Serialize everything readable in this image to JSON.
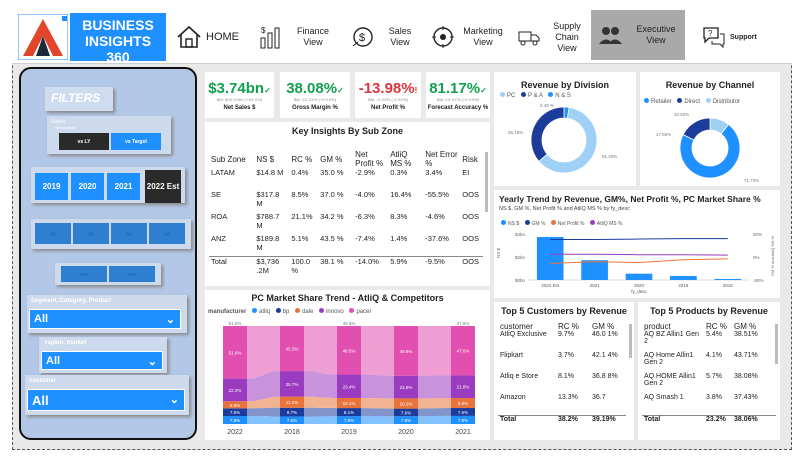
{
  "header": {
    "brand": "BUSINESS INSIGHTS 360",
    "nav": [
      {
        "label": "HOME",
        "icon": "home-icon"
      },
      {
        "label": "Finance View",
        "icon": "finance-icon"
      },
      {
        "label": "Sales View",
        "icon": "sales-icon"
      },
      {
        "label": "Marketing View",
        "icon": "marketing-icon"
      },
      {
        "label": "Supply Chain View",
        "icon": "supply-chain-icon"
      },
      {
        "label": "Executive View",
        "icon": "executive-icon"
      },
      {
        "label": "Support",
        "icon": "support-icon"
      }
    ],
    "active_nav": "Executive View"
  },
  "filters": {
    "title": "FILTERS",
    "select_label": "Select",
    "benchmark_label": "Benchmark",
    "vs_ly": "vs LY",
    "vs_target": "vs Target",
    "years": [
      "2019",
      "2020",
      "2021",
      "2022 Est"
    ],
    "selected_year": "2022 Est",
    "quarters": [
      "Q1",
      "Q2",
      "Q3",
      "Q4"
    ],
    "months": [
      "YTD",
      "YTG"
    ],
    "segment_label": "Segment, Category, Product",
    "segment_value": "All",
    "region_label": "region, market",
    "region_value": "All",
    "customer_label": "customer",
    "customer_value": "All"
  },
  "kpis": [
    {
      "value": "$3.74bn",
      "sub": "BM: $XX.XXbn (+XX.X%)",
      "label": "Net Sales $",
      "color": "green",
      "mark": "✓"
    },
    {
      "value": "38.08%",
      "sub": "BM: XX.XX% (+X.XX%)",
      "label": "Gross Margin %",
      "color": "green",
      "mark": "✓"
    },
    {
      "value": "-13.98%",
      "sub": "BM: -X.XX% (-X.XX%)",
      "label": "Net Profit %",
      "color": "red",
      "mark": "!"
    },
    {
      "value": "81.17%",
      "sub": "BM: XX.XX% (+X.XX%)",
      "label": "Forecast Accuracy %",
      "color": "green",
      "mark": "✓"
    }
  ],
  "insights": {
    "title": "Key Insights By Sub Zone",
    "columns": [
      "Sub Zone",
      "NS $",
      "RC %",
      "GM %",
      "Net Profit %",
      "AtliQ MS %",
      "Net Error %",
      "Risk"
    ],
    "rows": [
      [
        "LATAM",
        "$14.8 M",
        "0.4%",
        "35.0 %",
        "-2.9%",
        "0.3%",
        "3.4%",
        "EI"
      ],
      [
        "SE",
        "$317.8 M",
        "8.5%",
        "37.0 %",
        "-4.0%",
        "16.4%",
        "-55.5%",
        "OOS"
      ],
      [
        "ROA",
        "$788.7 M",
        "21.1%",
        "34.2 %",
        "-6.3%",
        "8.3%",
        "-4.6%",
        "OOS"
      ],
      [
        "ANZ",
        "$189.8 M",
        "5.1%",
        "43.5 %",
        "-7.4%",
        "1.4%",
        "-37.6%",
        "OOS"
      ]
    ],
    "total": [
      "Total",
      "$3,736 .2M",
      "100.0 %",
      "38.1 %",
      "-14.0%",
      "5.9%",
      "-9.5%",
      "OOS"
    ]
  },
  "division": {
    "title": "Revenue by Division",
    "legend": [
      "PC",
      "P & A",
      "N & S"
    ],
    "labels": [
      "2.49 %",
      "36.18%",
      "61.33%"
    ]
  },
  "channel": {
    "title": "Revenue by Channel",
    "legend": [
      "Retailer",
      "Direct",
      "Distributor"
    ],
    "labels": [
      "10.62%",
      "17.65%",
      "71.73%"
    ]
  },
  "trend": {
    "title": "Yearly Trend by Revenue, GM%, Net Profit %, PC Market Share %",
    "subtitle": "NS $, GM %, Net Profit % and AtliQ MS % by fy_desc",
    "legend": [
      "NS $",
      "GM %",
      "Net Profit %",
      "AtliQ MS %"
    ],
    "y_left": [
      "$4bn",
      "$2bn",
      "$0bn"
    ],
    "y_right": [
      "50%",
      "0%",
      "-50%"
    ],
    "ylabel": "NS $",
    "ylabel_right": "GM % and AtliQ MS %",
    "xlabel": "fy_desc",
    "categories": [
      "2022 Est",
      "2021",
      "2020",
      "2019",
      "2018"
    ]
  },
  "market_share": {
    "title": "PC Market Share Trend - AtliQ & Competitors",
    "legend_label": "manufacturer",
    "legend": [
      "atliq",
      "bp",
      "dale",
      "innovo",
      "pacer"
    ],
    "years": [
      "2022",
      "2018",
      "2019",
      "2020",
      "2021"
    ],
    "top_labels": [
      "51.6%",
      "",
      "48.5%",
      "",
      "47.6%"
    ]
  },
  "customers": {
    "title": "Top 5 Customers by Revenue",
    "columns": [
      "customer",
      "RC %",
      "GM %"
    ],
    "rows": [
      [
        "AtliQ Exclusive",
        "9.7%",
        "46.0 1%"
      ],
      [
        "Flipkart",
        "3.7%",
        "42.1 4%"
      ],
      [
        "Atliq e Store",
        "8.1%",
        "36.8 8%"
      ],
      [
        "Amazon",
        "13.3%",
        "36.7"
      ]
    ],
    "total": [
      "Total",
      "38.2%",
      "39.19%"
    ]
  },
  "products": {
    "title": "Top 5 Products by Revenue",
    "columns": [
      "product",
      "RC %",
      "GM %"
    ],
    "rows": [
      [
        "AQ BZ Allin1 Gen 2",
        "5.4%",
        "38.51%"
      ],
      [
        "AQ Home Allin1 Gen 2",
        "4.1%",
        "43.71%"
      ],
      [
        "AQ HOME Allin1 Gen 2",
        "5.7%",
        "38.08%"
      ],
      [
        "AQ Smash 1",
        "3.8%",
        "37.43%"
      ]
    ],
    "total": [
      "Total",
      "23.2%",
      "38.06%"
    ]
  },
  "chart_data": [
    {
      "type": "pie",
      "title": "Revenue by Division",
      "categories": [
        "PC",
        "P & A",
        "N & S"
      ],
      "values": [
        61.33,
        36.18,
        2.49
      ],
      "colors": [
        "#9fd0f5",
        "#1c3c9c",
        "#1e90ff"
      ]
    },
    {
      "type": "pie",
      "title": "Revenue by Channel",
      "categories": [
        "Retailer",
        "Direct",
        "Distributor"
      ],
      "values": [
        71.73,
        17.65,
        10.62
      ],
      "colors": [
        "#1e90ff",
        "#1c3c9c",
        "#9fd0f5"
      ]
    },
    {
      "type": "bar",
      "title": "Yearly Trend by Revenue, GM%, Net Profit %, PC Market Share %",
      "categories": [
        "2022 Est",
        "2021",
        "2020",
        "2019",
        "2018"
      ],
      "series": [
        {
          "name": "NS $",
          "values": [
            3.74,
            1.72,
            0.55,
            0.35,
            0.09
          ],
          "unit": "bn"
        },
        {
          "name": "GM %",
          "values": [
            38,
            38,
            39,
            40,
            40
          ],
          "unit": "%"
        },
        {
          "name": "Net Profit %",
          "values": [
            -14,
            -10,
            -12,
            -6,
            -4
          ],
          "unit": "%"
        },
        {
          "name": "AtliQ MS %",
          "values": [
            6,
            6,
            5,
            5,
            4
          ],
          "unit": "%"
        }
      ],
      "ylim_left": [
        0,
        4
      ],
      "ylim_right": [
        -50,
        50
      ],
      "colors": [
        "#1e90ff",
        "#1c3c9c",
        "#e8743b",
        "#9b3bbf"
      ]
    },
    {
      "type": "area",
      "title": "PC Market Share Trend - AtliQ & Competitors",
      "categories": [
        "2022",
        "2018",
        "2019",
        "2020",
        "2021"
      ],
      "series": [
        {
          "name": "atliq",
          "values": [
            7.8,
            7.6,
            7.8,
            7.8,
            7.8
          ]
        },
        {
          "name": "bp",
          "values": [
            7.6,
            8.7,
            8.1,
            7.6,
            7.6
          ]
        },
        {
          "name": "dale",
          "values": [
            6.9,
            11.2,
            10.1,
            10.2,
            9.6
          ]
        },
        {
          "name": "innovo",
          "values": [
            22.2,
            25.7,
            23.4,
            22.6,
            21.8
          ]
        },
        {
          "name": "pacer",
          "values": [
            51.6,
            45.3,
            48.5,
            49.8,
            47.6
          ]
        }
      ],
      "colors": [
        "#1e90ff",
        "#1c3c9c",
        "#e8743b",
        "#9b3bbf",
        "#e14fb0"
      ]
    }
  ]
}
